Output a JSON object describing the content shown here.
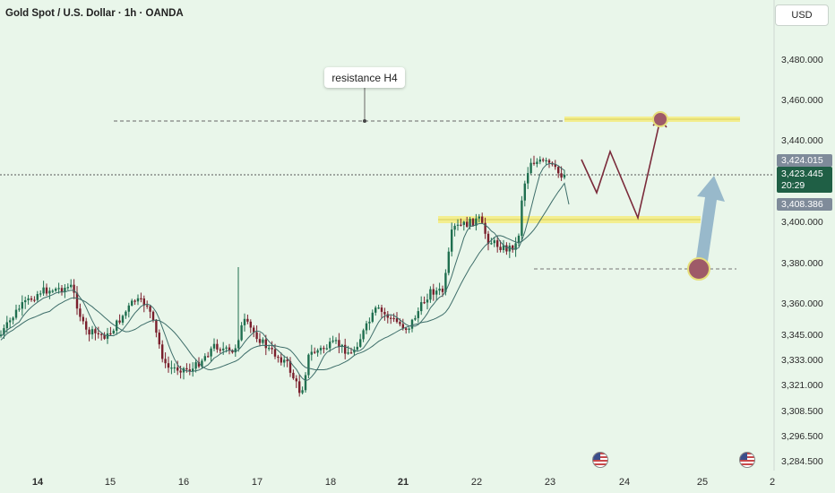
{
  "header": {
    "title": "Gold Spot / U.S. Dollar · 1h · OANDA"
  },
  "currency_button": {
    "label": "USD"
  },
  "annotation": {
    "label": "resistance H4"
  },
  "price_axis": {
    "ticks": [
      "3,480.000",
      "3,460.000",
      "3,440.000",
      "3,400.000",
      "3,380.000",
      "3,360.000",
      "3,345.000",
      "3,333.000",
      "3,321.000",
      "3,308.500",
      "3,296.500",
      "3,284.500"
    ]
  },
  "price_labels": {
    "top": "3,424.015",
    "current": "3,423.445",
    "countdown": "20:29",
    "low": "3,408.386"
  },
  "time_axis": {
    "ticks": [
      {
        "label": "14",
        "bold": true
      },
      {
        "label": "15",
        "bold": false
      },
      {
        "label": "16",
        "bold": false
      },
      {
        "label": "17",
        "bold": false
      },
      {
        "label": "18",
        "bold": false
      },
      {
        "label": "21",
        "bold": true
      },
      {
        "label": "22",
        "bold": false
      },
      {
        "label": "23",
        "bold": false
      },
      {
        "label": "24",
        "bold": false
      },
      {
        "label": "25",
        "bold": false
      },
      {
        "label": "2",
        "bold": false
      }
    ]
  },
  "colors": {
    "background": "#e9f6ea",
    "bullish": "#1f6f4f",
    "bearish": "#7a1f2c",
    "zone": "#f3ee8f",
    "projection": "#7a2a3a",
    "arrow": "#8fb2c8",
    "marker": "#9e5a68",
    "ma": "#3e6e6a"
  },
  "icons": {
    "event_flag": "us-flag-icon"
  }
}
